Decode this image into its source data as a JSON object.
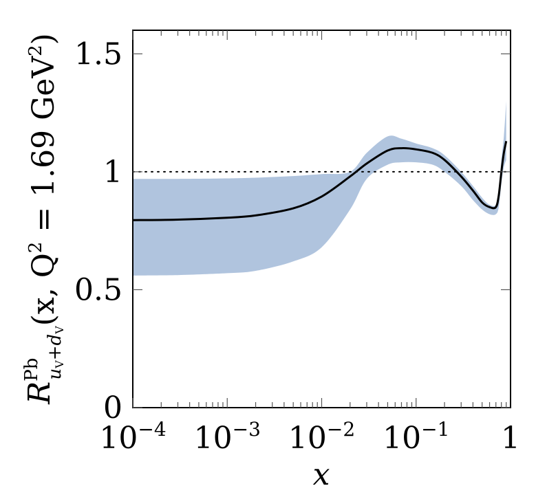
{
  "chart_data": {
    "type": "line",
    "x_scale": "log",
    "xlim": [
      0.0001,
      1
    ],
    "ylim": [
      0,
      1.6
    ],
    "grid": false,
    "xlabel": "x",
    "ylabel": {
      "base": "R",
      "superscript": "Pb",
      "subscript": "u",
      "subscript_v1": "V",
      "subscript_plus": "+d",
      "subscript_v2": "V",
      "args": "(x, Q",
      "q_exp": "2",
      "eq": " = 1.69 GeV",
      "gev_exp": "2",
      "close": ")"
    },
    "xticks": [
      {
        "value": 0.0001,
        "base": "10",
        "exp": "−4"
      },
      {
        "value": 0.001,
        "base": "10",
        "exp": "−3"
      },
      {
        "value": 0.01,
        "base": "10",
        "exp": "−2"
      },
      {
        "value": 0.1,
        "base": "10",
        "exp": "−1"
      },
      {
        "value": 1,
        "base": "1",
        "exp": ""
      }
    ],
    "yticks": [
      {
        "value": 0,
        "label": "0"
      },
      {
        "value": 0.5,
        "label": "0.5"
      },
      {
        "value": 1,
        "label": "1"
      },
      {
        "value": 1.5,
        "label": "1.5"
      }
    ],
    "reference_line": {
      "y": 1,
      "style": "dotted"
    },
    "series": [
      {
        "kind": "central",
        "color": "#000000",
        "x": [
          0.0001,
          0.0003,
          0.001,
          0.002,
          0.005,
          0.01,
          0.02,
          0.03,
          0.05,
          0.07,
          0.1,
          0.15,
          0.2,
          0.3,
          0.4,
          0.5,
          0.6,
          0.7,
          0.75,
          0.8,
          0.85,
          0.9
        ],
        "y": [
          0.795,
          0.797,
          0.805,
          0.815,
          0.845,
          0.895,
          0.98,
          1.035,
          1.09,
          1.1,
          1.095,
          1.08,
          1.05,
          0.98,
          0.92,
          0.87,
          0.85,
          0.85,
          0.9,
          1.0,
          1.08,
          1.13
        ]
      },
      {
        "kind": "uncertainty-band",
        "color": "#b0c4de",
        "x": [
          0.0001,
          0.0003,
          0.001,
          0.002,
          0.005,
          0.01,
          0.02,
          0.03,
          0.05,
          0.07,
          0.1,
          0.15,
          0.2,
          0.3,
          0.4,
          0.5,
          0.6,
          0.7,
          0.75,
          0.8,
          0.85,
          0.9
        ],
        "upper": [
          0.97,
          0.97,
          0.972,
          0.975,
          0.982,
          0.99,
          1.0,
          1.08,
          1.15,
          1.14,
          1.12,
          1.1,
          1.07,
          1.0,
          0.94,
          0.89,
          0.86,
          0.86,
          0.92,
          1.05,
          1.15,
          1.3
        ],
        "lower": [
          0.56,
          0.562,
          0.57,
          0.58,
          0.62,
          0.68,
          0.84,
          0.97,
          1.03,
          1.04,
          1.04,
          1.03,
          1.0,
          0.94,
          0.88,
          0.84,
          0.82,
          0.82,
          0.85,
          0.95,
          1.02,
          1.05
        ]
      }
    ]
  }
}
